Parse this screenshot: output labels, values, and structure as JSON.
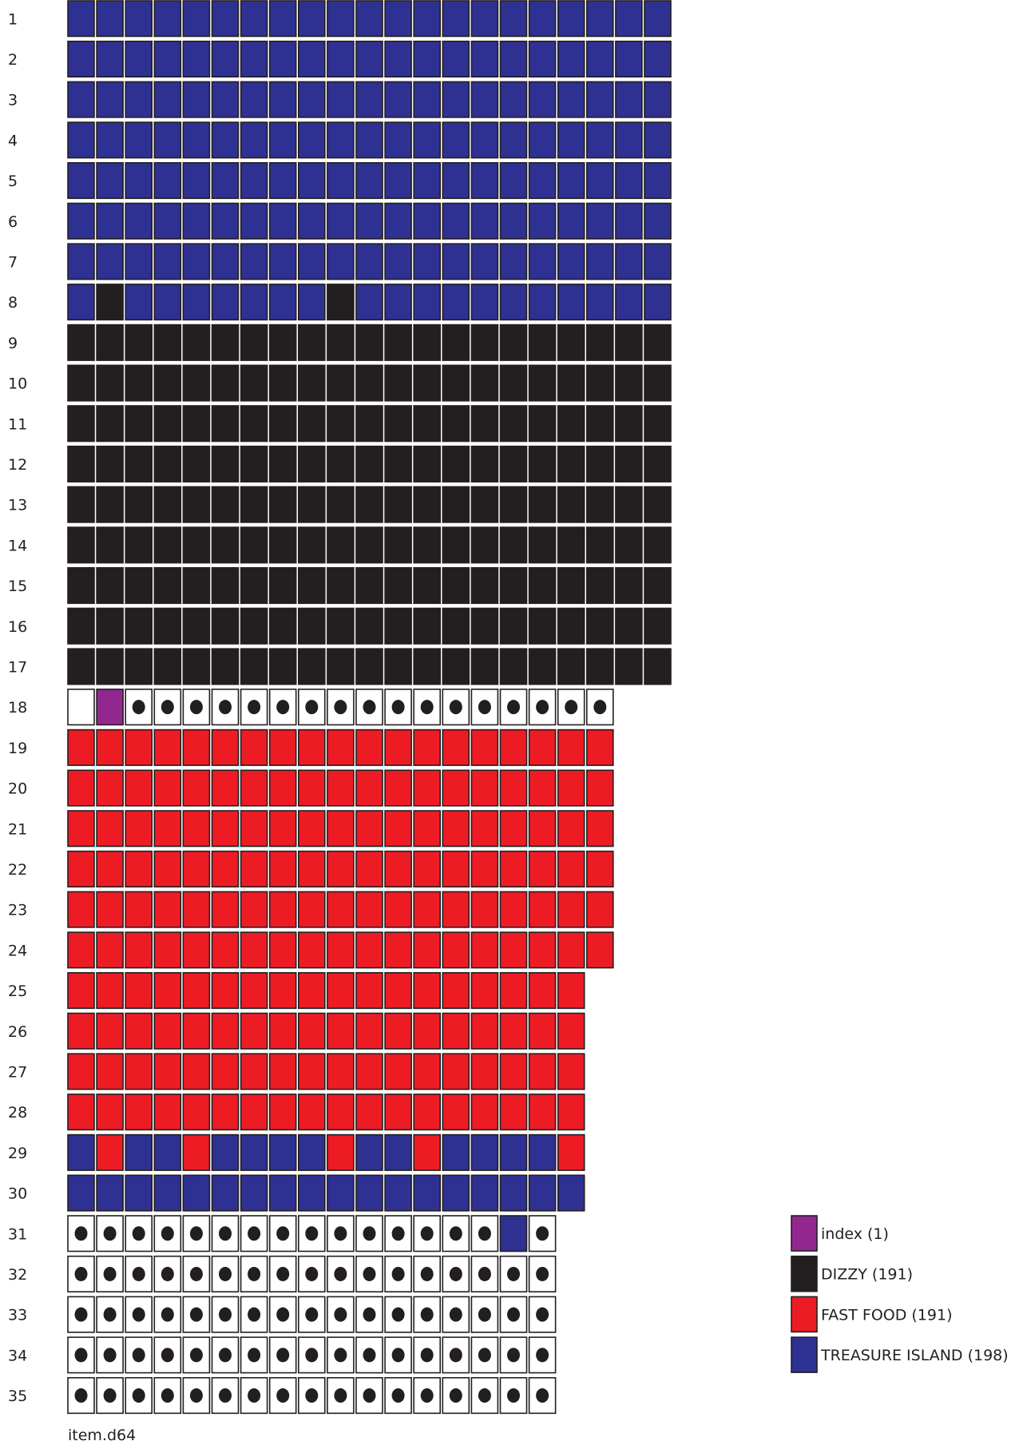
{
  "chart_data": {
    "type": "waffle",
    "colors": {
      "P": "#92278f",
      "D": "#231f20",
      "F": "#ed1c24",
      "T": "#2e3192",
      "E": "#ffffff"
    },
    "legend_placement": "bottom-right",
    "legend": [
      {
        "key": "P",
        "label": "index (1)"
      },
      {
        "key": "D",
        "label": "DIZZY (191)"
      },
      {
        "key": "F",
        "label": "FAST FOOD (191)"
      },
      {
        "key": "T",
        "label": "TREASURE ISLAND (198)"
      }
    ],
    "row_labels": [
      "1",
      "2",
      "3",
      "4",
      "5",
      "6",
      "7",
      "8",
      "9",
      "10",
      "11",
      "12",
      "13",
      "14",
      "15",
      "16",
      "17",
      "18",
      "19",
      "20",
      "21",
      "22",
      "23",
      "24",
      "25",
      "26",
      "27",
      "28",
      "29",
      "30",
      "31",
      "32",
      "33",
      "34",
      "35"
    ],
    "rows": [
      "TTTTTTTTTTTTTTTTTTTTT",
      "TTTTTTTTTTTTTTTTTTTTT",
      "TTTTTTTTTTTTTTTTTTTTT",
      "TTTTTTTTTTTTTTTTTTTTT",
      "TTTTTTTTTTTTTTTTTTTTT",
      "TTTTTTTTTTTTTTTTTTTTT",
      "TTTTTTTTTTTTTTTTTTTTT",
      "TDTTTTTTTDTTTTTTTTTTT",
      "DDDDDDDDDDDDDDDDDDDDD",
      "DDDDDDDDDDDDDDDDDDDDD",
      "DDDDDDDDDDDDDDDDDDDDD",
      "DDDDDDDDDDDDDDDDDDDDD",
      "DDDDDDDDDDDDDDDDDDDDD",
      "DDDDDDDDDDDDDDDDDDDDD",
      "DDDDDDDDDDDDDDDDDDDDD",
      "DDDDDDDDDDDDDDDDDDDDD",
      "DDDDDDDDDDDDDDDDDDDDD",
      "WPEEEEEEEEEEEEEEEEE",
      "FFFFFFFFFFFFFFFFFFF",
      "FFFFFFFFFFFFFFFFFFF",
      "FFFFFFFFFFFFFFFFFFF",
      "FFFFFFFFFFFFFFFFFFF",
      "FFFFFFFFFFFFFFFFFFF",
      "FFFFFFFFFFFFFFFFFFF",
      "FFFFFFFFFFFFFFFFFF",
      "FFFFFFFFFFFFFFFFFF",
      "FFFFFFFFFFFFFFFFFF",
      "FFFFFFFFFFFFFFFFFF",
      "TFTTFTTTTFTTFTTTTF",
      "TTTTTTTTTTTTTTTTTT",
      "EEEEEEEEEEEEEEETE",
      "EEEEEEEEEEEEEEEEE",
      "EEEEEEEEEEEEEEEEE",
      "EEEEEEEEEEEEEEEEE",
      "EEEEEEEEEEEEEEEEE"
    ],
    "cell_codes": {
      "E": "empty cell with dot",
      "W": "empty cell"
    },
    "caption": "item.d64"
  }
}
